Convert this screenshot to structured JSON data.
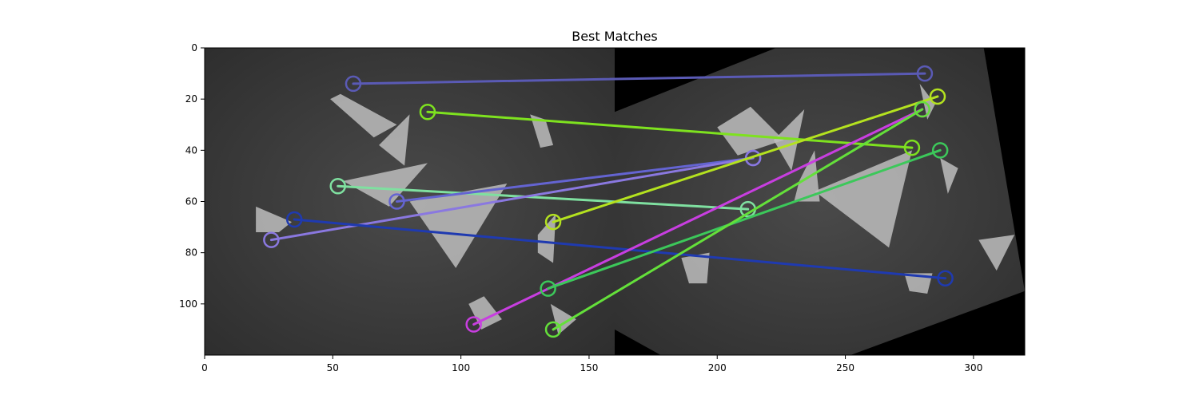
{
  "chart_data": {
    "type": "image-matches",
    "title": "Best Matches",
    "xlim": [
      0,
      320
    ],
    "ylim": [
      120,
      0
    ],
    "x_ticks": [
      0,
      50,
      100,
      150,
      200,
      250,
      300
    ],
    "y_ticks": [
      0,
      20,
      40,
      60,
      80,
      100
    ],
    "image_split_x": 160,
    "background_color": "#3c3c3c",
    "right_image_border": "#000000",
    "shape_color": "#bdbdbd",
    "matches": [
      {
        "p1": [
          58,
          14
        ],
        "p2": [
          281,
          10
        ],
        "color": "#5a5ab5"
      },
      {
        "p1": [
          87,
          25
        ],
        "p2": [
          276,
          39
        ],
        "color": "#7ee21f"
      },
      {
        "p1": [
          52,
          54
        ],
        "p2": [
          212,
          63
        ],
        "color": "#7fe0a0"
      },
      {
        "p1": [
          75,
          60
        ],
        "p2": [
          214,
          43
        ],
        "color": "#6464d2"
      },
      {
        "p1": [
          26,
          75
        ],
        "p2": [
          214,
          43
        ],
        "color": "#8a78e0"
      },
      {
        "p1": [
          35,
          67
        ],
        "p2": [
          289,
          90
        ],
        "color": "#1f3ab0"
      },
      {
        "p1": [
          136,
          68
        ],
        "p2": [
          286,
          19
        ],
        "color": "#b4e21f"
      },
      {
        "p1": [
          105,
          108
        ],
        "p2": [
          280,
          24
        ],
        "color": "#c83ee0"
      },
      {
        "p1": [
          134,
          94
        ],
        "p2": [
          287,
          40
        ],
        "color": "#3cc85a"
      },
      {
        "p1": [
          136,
          110
        ],
        "p2": [
          280,
          24
        ],
        "color": "#64e03a"
      }
    ]
  }
}
